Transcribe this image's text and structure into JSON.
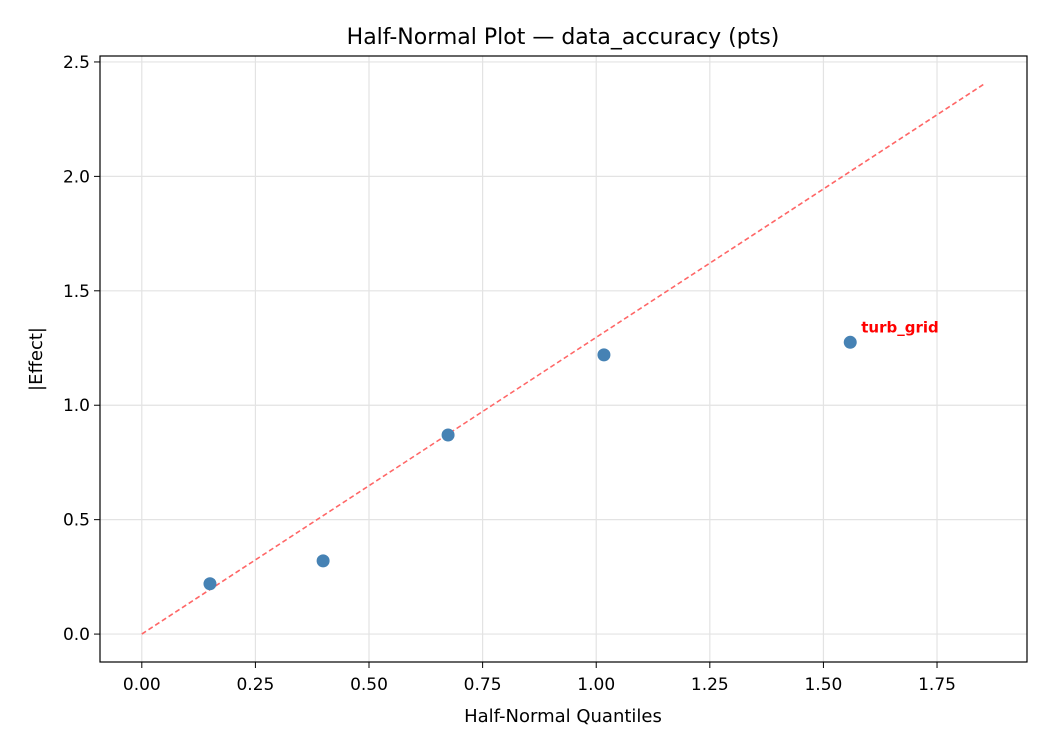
{
  "chart_data": {
    "type": "scatter",
    "title": "Half-Normal Plot — data_accuracy (pts)",
    "xlabel": "Half-Normal Quantiles",
    "ylabel": "|Effect|",
    "xlim": [
      -0.092,
      1.948
    ],
    "ylim": [
      -0.122,
      2.526
    ],
    "xticks": [
      0,
      0.25,
      0.5,
      0.75,
      1.0,
      1.25,
      1.5,
      1.75
    ],
    "xtick_labels": [
      "0.00",
      "0.25",
      "0.50",
      "0.75",
      "1.00",
      "1.25",
      "1.50",
      "1.75"
    ],
    "yticks": [
      0,
      0.5,
      1.0,
      1.5,
      2.0,
      2.5
    ],
    "ytick_labels": [
      "0.0",
      "0.5",
      "1.0",
      "1.5",
      "2.0",
      "2.5"
    ],
    "grid": true,
    "points": [
      {
        "x": 0.15,
        "y": 0.22
      },
      {
        "x": 0.399,
        "y": 0.32
      },
      {
        "x": 0.674,
        "y": 0.87
      },
      {
        "x": 1.017,
        "y": 1.22
      },
      {
        "x": 1.559,
        "y": 1.275,
        "label": "turb_grid"
      }
    ],
    "reference_line": {
      "x": [
        0,
        1.857
      ],
      "y": [
        0,
        2.408
      ],
      "style": "dashed",
      "color": "#ff6666"
    },
    "point_color": "#4682b4",
    "label_color": "#ff0000"
  }
}
